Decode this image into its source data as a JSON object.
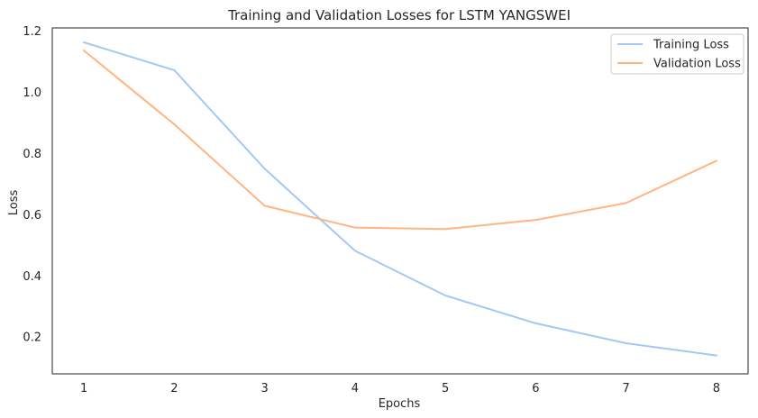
{
  "chart_data": {
    "type": "line",
    "title": "Training and Validation Losses for LSTM YANGSWEI",
    "xlabel": "Epochs",
    "ylabel": "Loss",
    "x": [
      1,
      2,
      3,
      4,
      5,
      6,
      7,
      8
    ],
    "xticks": [
      "1",
      "2",
      "3",
      "4",
      "5",
      "6",
      "7",
      "8"
    ],
    "yticks": [
      "0.2",
      "0.4",
      "0.6",
      "0.8",
      "1.0",
      "1.2"
    ],
    "xlim": [
      0.65,
      8.35
    ],
    "ylim": [
      0.08,
      1.21
    ],
    "grid": false,
    "legend_position": "top-right",
    "series": [
      {
        "name": "Training Loss",
        "color": "#a1c9f4",
        "values": [
          1.163,
          1.072,
          0.75,
          0.482,
          0.336,
          0.245,
          0.18,
          0.14
        ]
      },
      {
        "name": "Validation Loss",
        "color": "#ffb482",
        "values": [
          1.136,
          0.895,
          0.629,
          0.558,
          0.553,
          0.583,
          0.638,
          0.776
        ]
      }
    ]
  }
}
